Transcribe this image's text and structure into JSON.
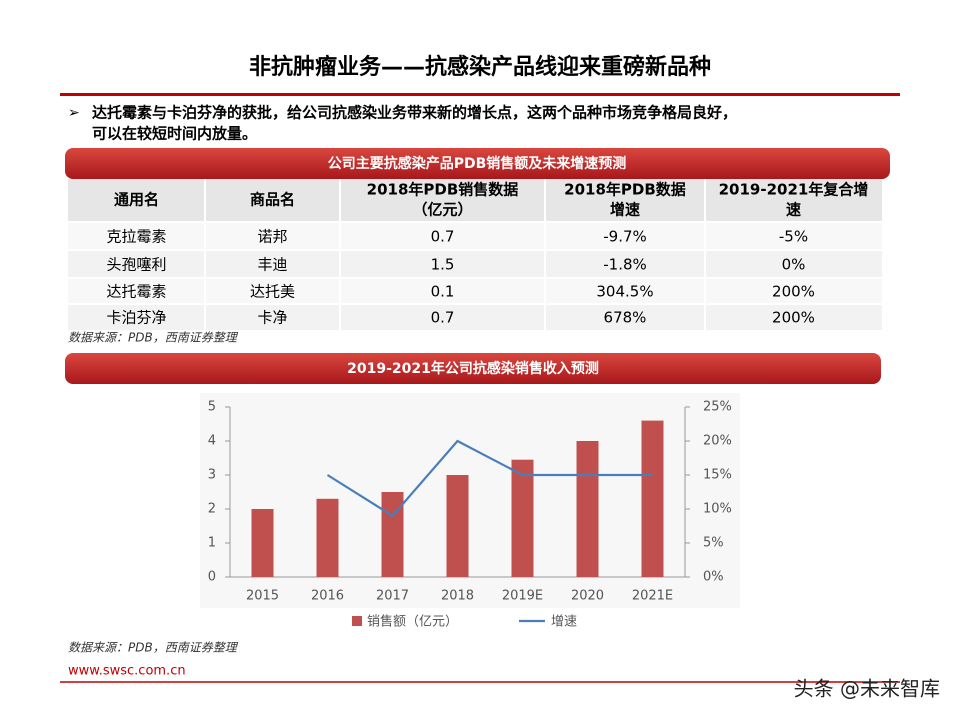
{
  "header": {
    "title": "非抗肿瘤业务——抗感染产品线迎来重磅新品种"
  },
  "bullet": {
    "lines": [
      "达托霉素与卡泊芬净的获批，给公司抗感染业务带来新的增长点，这两个品种市场竞争格局良好，",
      "可以在较短时间内放量。"
    ]
  },
  "table": {
    "caption": "公司主要抗感染产品PDB销售额及未来增速预测",
    "header": [
      [
        "通用名"
      ],
      [
        "商品名"
      ],
      [
        "2018年PDB销售数据",
        "（亿元）"
      ],
      [
        "2018年PDB数据",
        "增速"
      ],
      [
        "2019-2021年复合增",
        "速"
      ]
    ],
    "rows": [
      [
        "克拉霉素",
        "诺邦",
        "0.7",
        "-9.7%",
        "-5%"
      ],
      [
        "头孢噻利",
        "丰迪",
        "1.5",
        "-1.8%",
        "0%"
      ],
      [
        "达托霉素",
        "达托美",
        "0.1",
        "304.5%",
        "200%"
      ],
      [
        "卡泊芬净",
        "卡净",
        "0.7",
        "678%",
        "200%"
      ]
    ],
    "source": "数据来源：PDB，西南证券整理"
  },
  "chart_data": {
    "type": "bar",
    "title": "2019-2021年公司抗感染销售收入预测",
    "categories": [
      "2015",
      "2016",
      "2017",
      "2018",
      "2019E",
      "2020",
      "2021E"
    ],
    "series": [
      {
        "name": "销售额（亿元）",
        "type": "bar",
        "color": "#c0504d",
        "values": [
          2,
          2.3,
          2.5,
          3,
          3.45,
          4,
          4.6
        ]
      },
      {
        "name": "增速",
        "type": "line",
        "axis": "y2",
        "color": "#4a7ebb",
        "values": [
          null,
          15,
          9,
          20,
          15,
          15,
          15
        ]
      }
    ],
    "ylim": [
      0,
      5
    ],
    "yticks": [
      0,
      1,
      2,
      3,
      4,
      5
    ],
    "y2lim": [
      0,
      25
    ],
    "y2ticks": [
      {
        "value": 0,
        "label": "0%"
      },
      {
        "value": 5,
        "label": "5%"
      },
      {
        "value": 10,
        "label": "10%"
      },
      {
        "value": 15,
        "label": "15%"
      },
      {
        "value": 20,
        "label": "20%"
      },
      {
        "value": 25,
        "label": "25%"
      }
    ],
    "legend": "bottom",
    "source": "数据来源：PDB，西南证券整理"
  },
  "footer": {
    "url": "www.swsc.com.cn",
    "watermark": "头条 @未来智库"
  }
}
